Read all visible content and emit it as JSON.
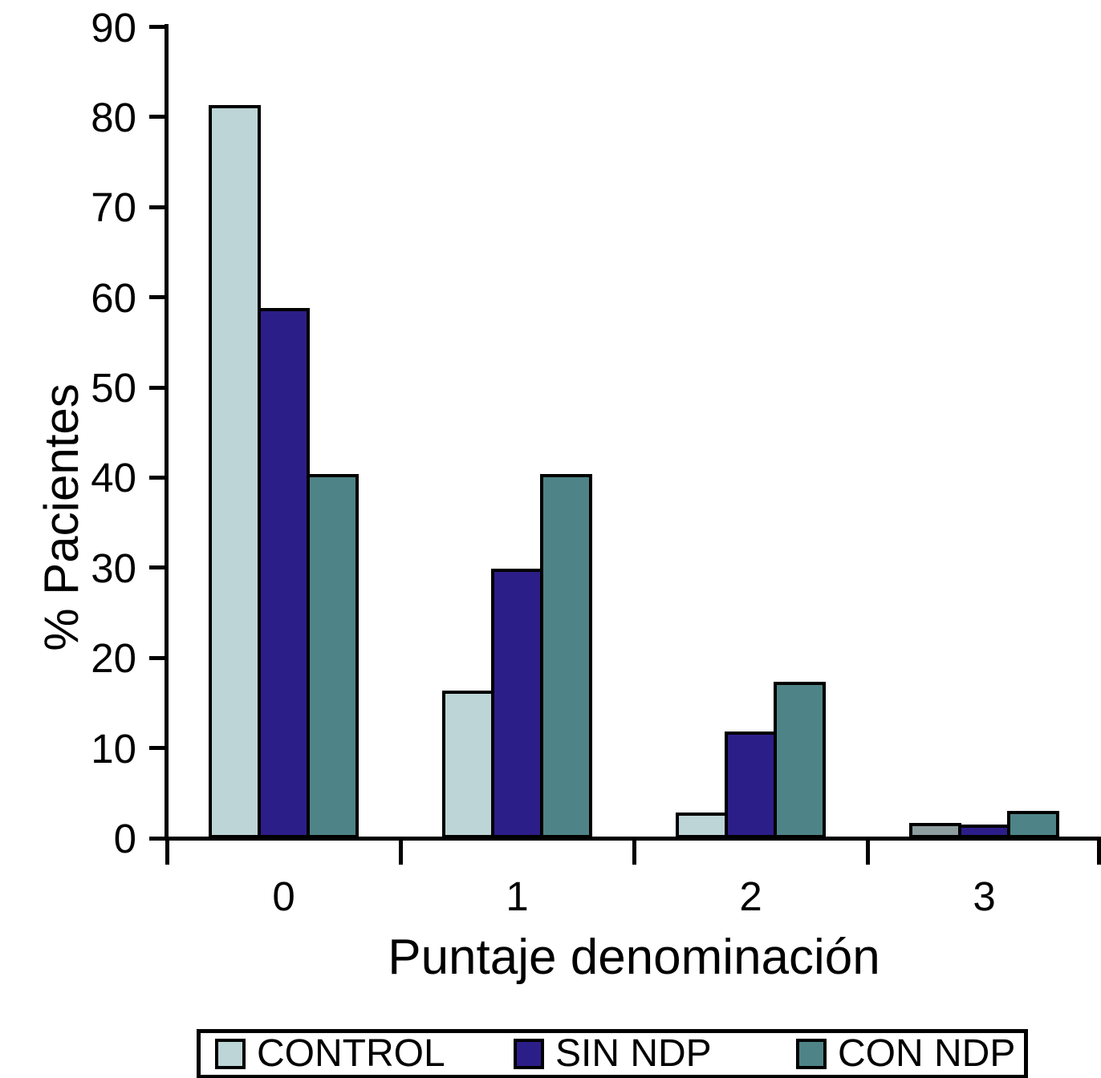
{
  "chart_data": {
    "type": "bar",
    "title": "",
    "xlabel": "Puntaje denominación",
    "ylabel": "% Pacientes",
    "categories": [
      "0",
      "1",
      "2",
      "3"
    ],
    "y_ticks": [
      0,
      10,
      20,
      30,
      40,
      50,
      60,
      70,
      80,
      90
    ],
    "ylim": [
      0,
      90
    ],
    "grid": "off",
    "legend_position": "bottom",
    "axis_color": "#000000",
    "series": [
      {
        "name": "CONTROL",
        "color": "#bdd5d7",
        "values": [
          81,
          16,
          2.5,
          1.3
        ],
        "bar_color_overrides": {
          "3": "#8e9d9e"
        }
      },
      {
        "name": "SIN NDP",
        "color": "#2c1e88",
        "values": [
          58.5,
          29.5,
          11.5,
          1.2
        ]
      },
      {
        "name": "CON NDP",
        "color": "#4e8487",
        "values": [
          40,
          40,
          17,
          2.7
        ]
      }
    ]
  }
}
